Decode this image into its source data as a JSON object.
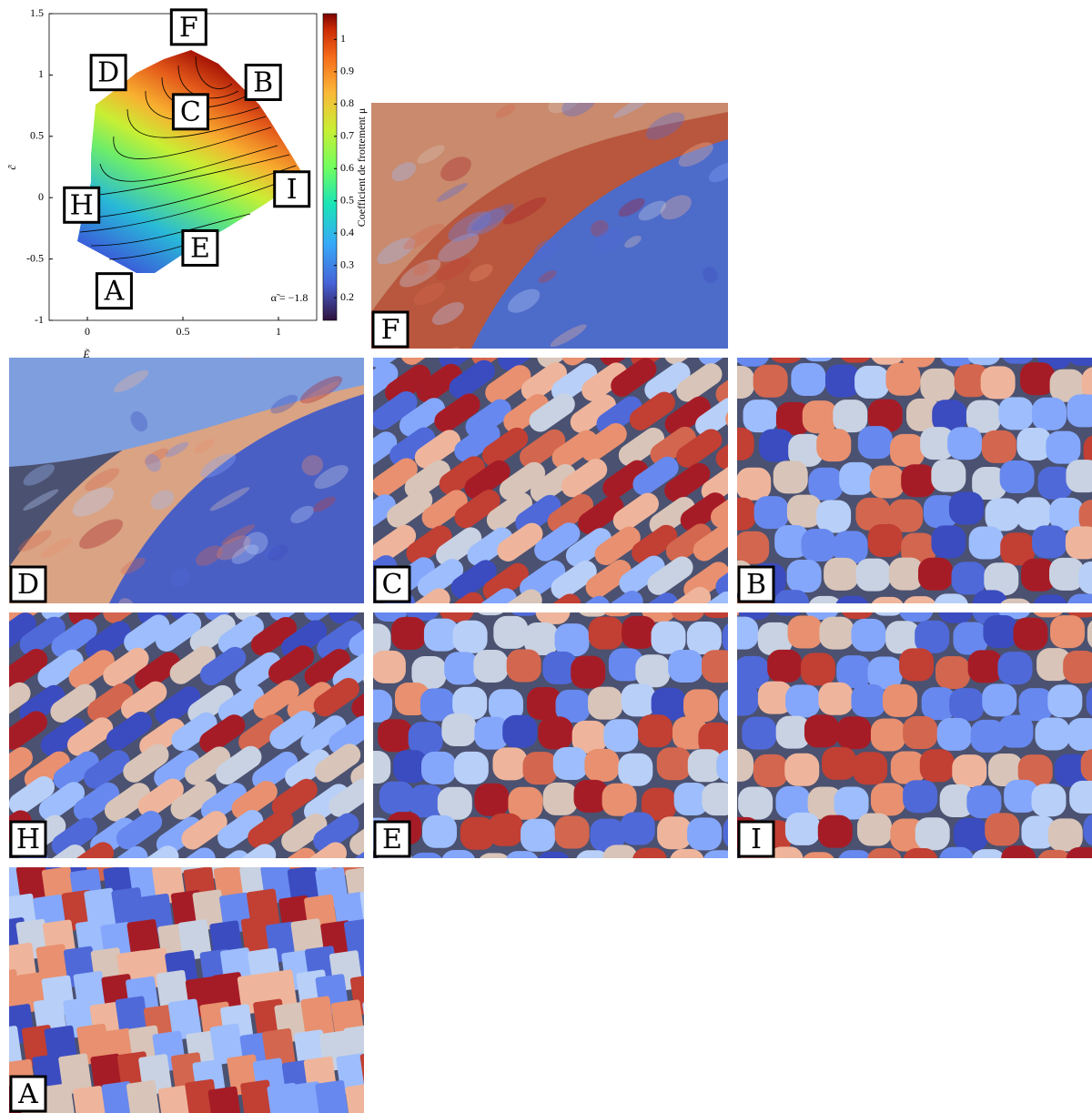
{
  "chart_data": {
    "type": "contour",
    "xlabel": "Ẽ",
    "ylabel": "c̃",
    "xlim": [
      -0.2,
      1.2
    ],
    "ylim": [
      -1,
      1.5
    ],
    "xticks": [
      0,
      0.5,
      1
    ],
    "yticks": [
      -1,
      -0.5,
      0,
      0.5,
      1,
      1.5
    ],
    "colorbar": {
      "label": "Coefficient de frottement μ",
      "lim": [
        0.13,
        1.08
      ],
      "ticks": [
        0.2,
        0.3,
        0.4,
        0.5,
        0.6,
        0.7,
        0.8,
        0.9,
        1
      ]
    },
    "annotation": "α̃ = −1.8",
    "points": {
      "labels": [
        "F",
        "D",
        "B",
        "C",
        "I",
        "H",
        "E",
        "A"
      ],
      "x": [
        0.53,
        0.11,
        0.92,
        0.54,
        1.07,
        -0.03,
        0.59,
        0.14
      ],
      "y": [
        1.39,
        1.02,
        0.94,
        0.7,
        0.07,
        -0.06,
        -0.41,
        -0.76
      ]
    }
  },
  "panels": [
    {
      "label": "F"
    },
    {
      "label": "D"
    },
    {
      "label": "C"
    },
    {
      "label": "B"
    },
    {
      "label": "H"
    },
    {
      "label": "E"
    },
    {
      "label": "I"
    },
    {
      "label": "A"
    }
  ]
}
